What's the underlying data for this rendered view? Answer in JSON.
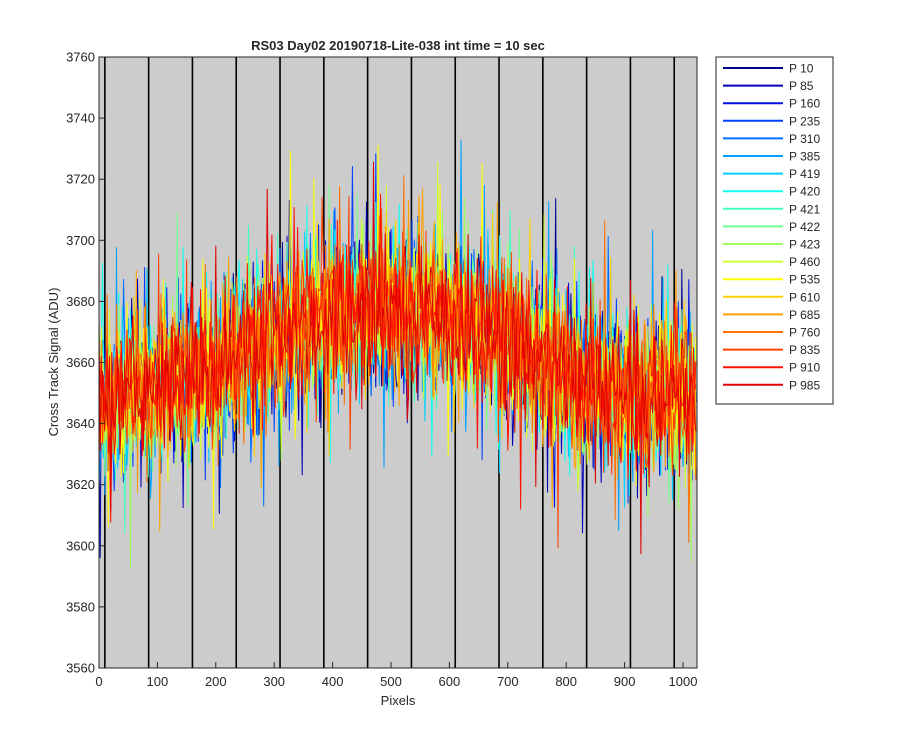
{
  "chart_data": {
    "type": "line",
    "title": "RS03 Day02 20190718-Lite-038 int time = 10 sec",
    "xlabel": "Pixels",
    "ylabel": "Cross Track Signal (ADU)",
    "xlim": [
      0,
      1024
    ],
    "ylim": [
      3560,
      3760
    ],
    "xticks": [
      "0",
      "100",
      "200",
      "300",
      "400",
      "500",
      "600",
      "700",
      "800",
      "900",
      "1000"
    ],
    "yticks": [
      "3560",
      "3580",
      "3600",
      "3620",
      "3640",
      "3660",
      "3680",
      "3700",
      "3720",
      "3740",
      "3760"
    ],
    "background_color": "#cccccc",
    "grid": false,
    "legend_position": "outside-right",
    "vertical_lines": [
      10,
      85,
      160,
      235,
      310,
      385,
      460,
      535,
      610,
      685,
      760,
      835,
      910,
      985
    ],
    "profile_shape": {
      "pixels": [
        0,
        100,
        200,
        300,
        400,
        500,
        600,
        700,
        800,
        900,
        1024
      ],
      "mean_signal": [
        3648,
        3652,
        3658,
        3668,
        3675,
        3678,
        3675,
        3668,
        3655,
        3650,
        3648
      ]
    },
    "series": [
      {
        "name": "P 10",
        "color": "#00008f"
      },
      {
        "name": "P 85",
        "color": "#0000b5"
      },
      {
        "name": "P 160",
        "color": "#0010e0"
      },
      {
        "name": "P 235",
        "color": "#0040ff"
      },
      {
        "name": "P 310",
        "color": "#0070ff"
      },
      {
        "name": "P 385",
        "color": "#00a0ff"
      },
      {
        "name": "P 419",
        "color": "#00cfff"
      },
      {
        "name": "P 420",
        "color": "#10ffef"
      },
      {
        "name": "P 421",
        "color": "#40ffbf"
      },
      {
        "name": "P 422",
        "color": "#70ff8f"
      },
      {
        "name": "P 423",
        "color": "#9fff60"
      },
      {
        "name": "P 460",
        "color": "#cfff30"
      },
      {
        "name": "P 535",
        "color": "#ffff00"
      },
      {
        "name": "P 610",
        "color": "#ffcf00"
      },
      {
        "name": "P 685",
        "color": "#ff9f00"
      },
      {
        "name": "P 760",
        "color": "#ff7000"
      },
      {
        "name": "P 835",
        "color": "#ff4000"
      },
      {
        "name": "P 910",
        "color": "#ff1000"
      },
      {
        "name": "P 985",
        "color": "#df0000"
      }
    ]
  }
}
